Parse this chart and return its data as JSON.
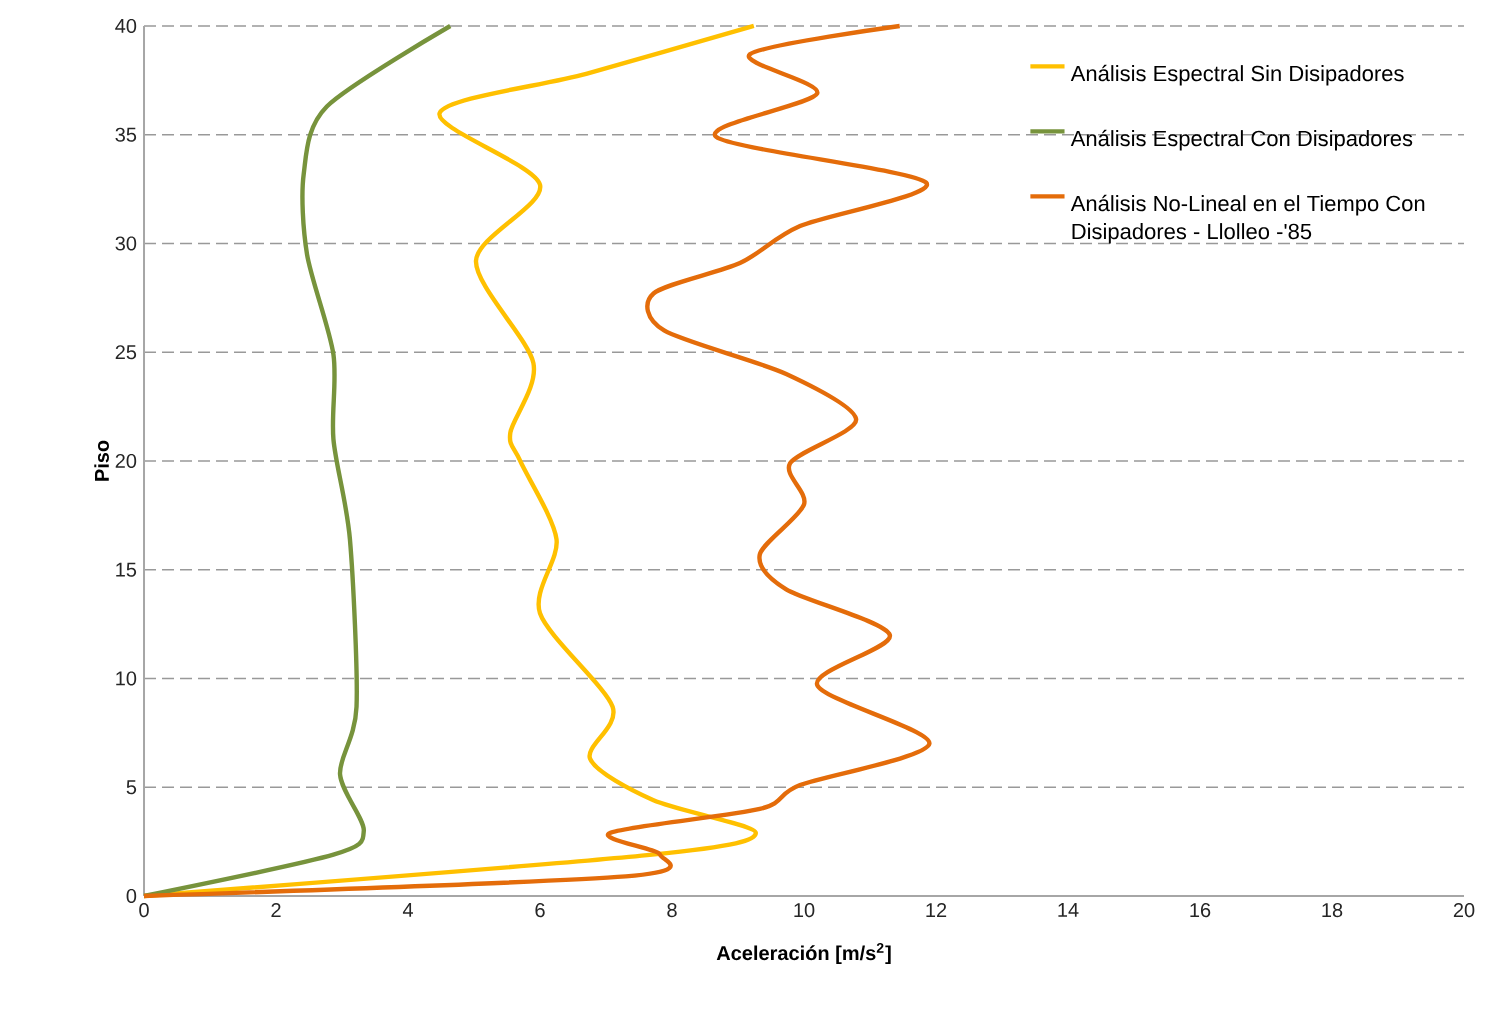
{
  "chart_data": {
    "type": "line",
    "xlabel": "Aceleración [m/s$^{2}$]",
    "ylabel": "Piso",
    "xlim": [
      0,
      20
    ],
    "xticks": [
      0,
      2,
      4,
      6,
      8,
      10,
      12,
      14,
      16,
      18,
      20
    ],
    "ylim": [
      0,
      40
    ],
    "yticks": [
      0,
      5,
      10,
      15,
      20,
      25,
      30,
      35,
      40
    ],
    "grid": "y",
    "legend": "top right",
    "series": [
      {
        "name": "Análisis Espectral Sin Disipadores",
        "color": "#ffc000",
        "x": [
          0,
          7.7,
          9.27,
          7.72,
          6.76,
          7.1,
          6.0,
          6.25,
          5.7,
          5.55,
          5.9,
          5.03,
          6.0,
          4.48,
          6.7,
          9.24
        ],
        "values": [
          0,
          1.9,
          2.9,
          4.4,
          6.3,
          8.7,
          13.0,
          16.4,
          20.0,
          21.3,
          24.5,
          29.2,
          32.7,
          36.0,
          37.8,
          40
        ]
      },
      {
        "name": "Análisis Espectral Con Disipadores",
        "color": "#77933c",
        "x": [
          0,
          2.87,
          3.33,
          2.97,
          3.22,
          3.12,
          2.87,
          2.87,
          2.47,
          2.42,
          2.77,
          4.64
        ],
        "values": [
          0,
          1.9,
          3.0,
          5.6,
          8.7,
          16.4,
          21.0,
          24.9,
          29.5,
          33.2,
          36.3,
          40
        ]
      },
      {
        "name": "Análisis No-Lineal en el Tiempo Con Disipadores - Llolleo -'85",
        "color": "#e46c0a",
        "x": [
          0,
          7.3,
          7.82,
          7.06,
          9.33,
          9.94,
          11.9,
          10.2,
          11.3,
          9.73,
          9.33,
          10.0,
          9.79,
          10.79,
          9.73,
          7.88,
          7.72,
          9.03,
          9.94,
          11.85,
          8.67,
          10.2,
          9.18,
          11.45
        ],
        "values": [
          0,
          0.9,
          1.9,
          2.9,
          4.0,
          5.1,
          7.0,
          9.7,
          12.0,
          14.1,
          15.7,
          18.0,
          19.9,
          21.9,
          24.0,
          26.0,
          27.7,
          29.1,
          30.8,
          32.8,
          34.9,
          36.9,
          38.7,
          40
        ]
      }
    ]
  }
}
